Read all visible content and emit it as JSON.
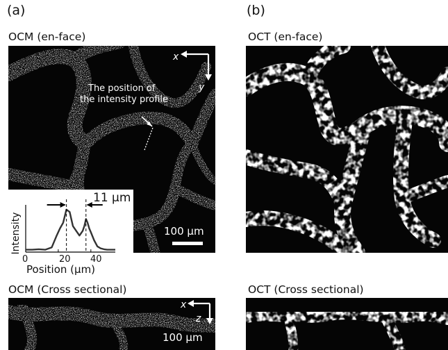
{
  "panel_a": {
    "letter": "(a)",
    "title_enface": "OCM (en-face)",
    "title_cross": "OCM (Cross sectional)",
    "axis_x": "x",
    "axis_y": "y",
    "axis_z": "z",
    "annotation": [
      "The position of",
      "the intensity profile"
    ],
    "scale_bar": "100 μm",
    "scale_bar_cross": "100 μm",
    "inset": {
      "width_label": "11 μm",
      "ylabel": "Intensity",
      "xlabel": "Position (μm)",
      "xticks": [
        "0",
        "20",
        "40"
      ]
    }
  },
  "panel_b": {
    "letter": "(b)",
    "title_enface": "OCT (en-face)",
    "title_cross": "OCT (Cross sectional)"
  },
  "chart_data": {
    "type": "line",
    "title": "",
    "xlabel": "Position (μm)",
    "ylabel": "Intensity",
    "xlim": [
      0,
      55
    ],
    "xticks": [
      0,
      20,
      40
    ],
    "x": [
      0,
      4,
      8,
      12,
      16,
      19,
      21,
      23,
      25,
      27,
      29,
      31,
      33,
      35,
      36,
      37,
      38,
      39,
      40,
      42,
      44,
      46,
      48,
      50,
      52,
      55
    ],
    "y": [
      0.05,
      0.05,
      0.06,
      0.05,
      0.1,
      0.35,
      0.5,
      0.62,
      0.9,
      0.85,
      0.55,
      0.45,
      0.35,
      0.45,
      0.55,
      0.7,
      0.62,
      0.5,
      0.42,
      0.25,
      0.12,
      0.08,
      0.06,
      0.05,
      0.05,
      0.05
    ],
    "annotations": [
      {
        "text": "11 μm",
        "x_from": 25,
        "x_to": 37
      }
    ]
  }
}
